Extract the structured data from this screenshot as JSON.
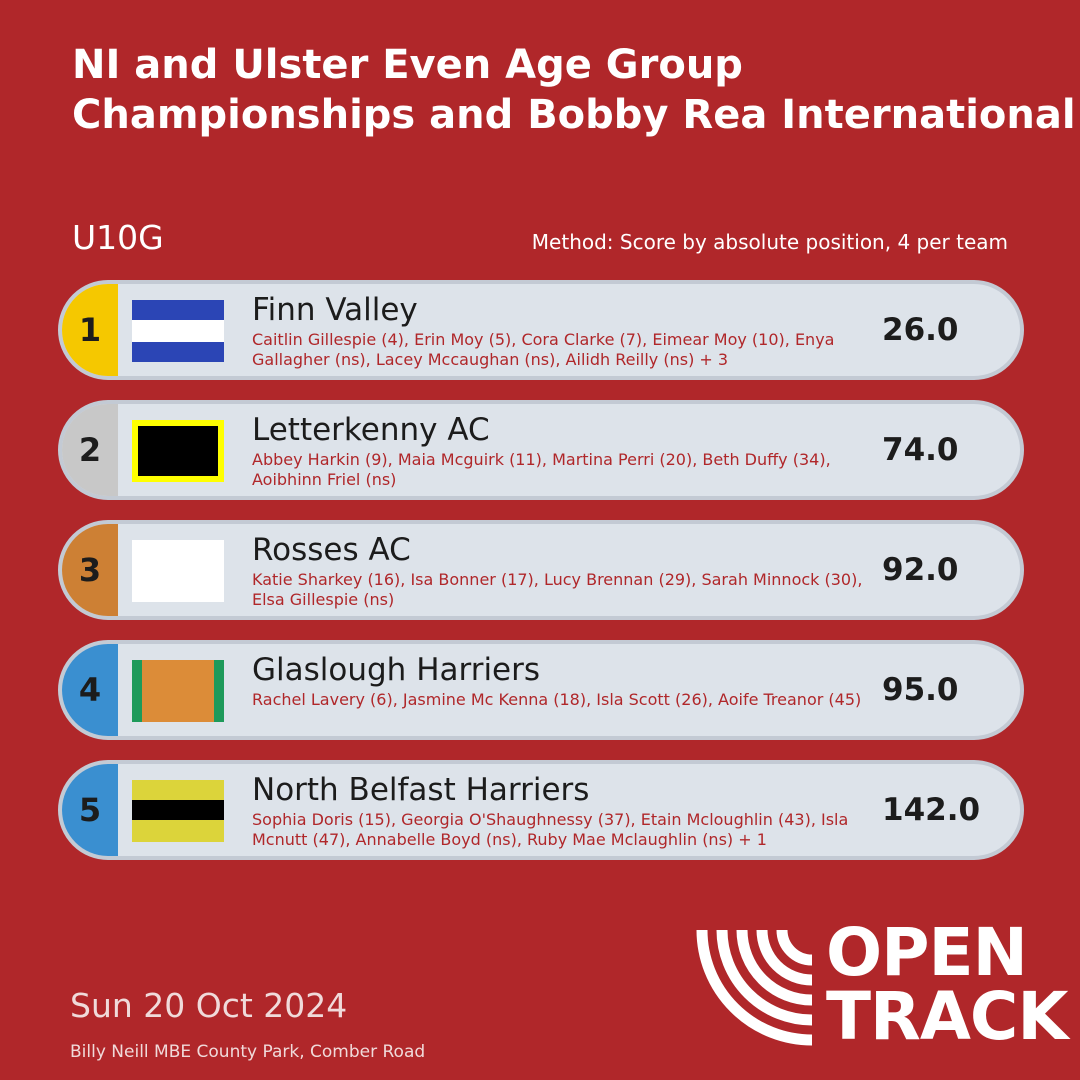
{
  "header": {
    "title_lines": [
      "NI and Ulster Even Age Group",
      "Championships and Bobby Rea International"
    ],
    "category": "U10G",
    "method": "Method: Score by absolute position, 4 per team"
  },
  "teams": [
    {
      "rank": 1,
      "name": "Finn Valley",
      "athletes": "Caitlin Gillespie (4), Erin Moy (5), Cora Clarke (7), Eimear Moy (10), Enya Gallagher (ns), Lacey Mccaughan (ns), Ailidh Reilly (ns) + 3",
      "score": "26.0"
    },
    {
      "rank": 2,
      "name": "Letterkenny AC",
      "athletes": "Abbey Harkin (9), Maia Mcguirk (11), Martina Perri (20), Beth Duffy (34), Aoibhinn Friel (ns)",
      "score": "74.0"
    },
    {
      "rank": 3,
      "name": "Rosses AC",
      "athletes": "Katie Sharkey (16), Isa Bonner (17), Lucy Brennan (29), Sarah Minnock (30), Elsa Gillespie (ns)",
      "score": "92.0"
    },
    {
      "rank": 4,
      "name": "Glaslough Harriers",
      "athletes": "Rachel Lavery (6), Jasmine Mc Kenna (18), Isla Scott (26), Aoife Treanor (45)",
      "score": "95.0"
    },
    {
      "rank": 5,
      "name": "North Belfast Harriers",
      "athletes": "Sophia Doris (15), Georgia O'Shaughnessy (37), Etain Mcloughlin (43), Isla Mcnutt (47), Annabelle Boyd (ns), Ruby Mae Mclaughlin (ns) + 1",
      "score": "142.0"
    }
  ],
  "footer": {
    "date": "Sun 20 Oct 2024",
    "venue": "Billy Neill MBE County Park, Comber Road",
    "logo_lines": [
      "OPEN",
      "TRACK"
    ]
  }
}
